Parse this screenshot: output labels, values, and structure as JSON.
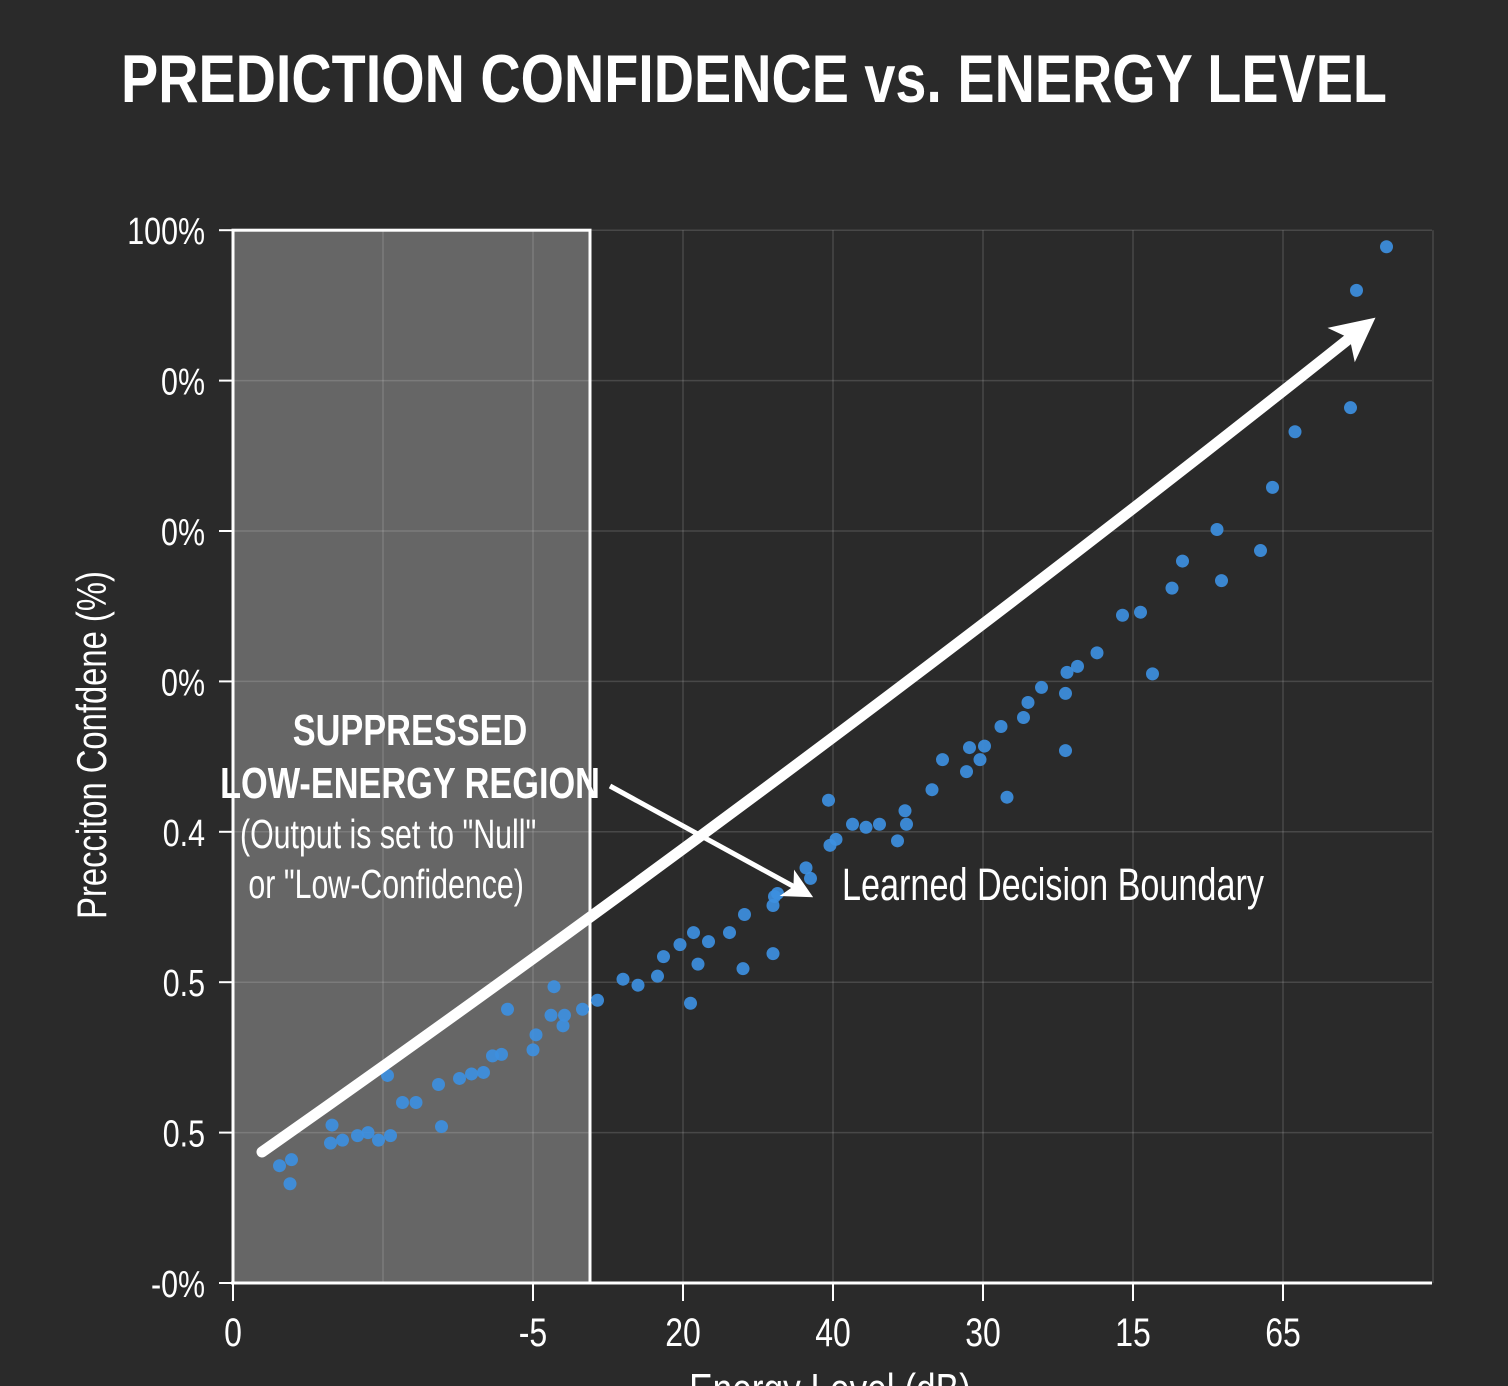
{
  "chart_data": {
    "type": "scatter",
    "title": "PREDICTION CONFIDENCE vs. ENERGY LEVEL",
    "xlabel": "Energy Level (dB)",
    "ylabel": "Precciton Confdene (%)",
    "x_tick_labels": [
      {
        "pos": 0,
        "label": "0"
      },
      {
        "pos": 2,
        "label": "-5"
      },
      {
        "pos": 3,
        "label": "20"
      },
      {
        "pos": 4,
        "label": "40"
      },
      {
        "pos": 5,
        "label": "30"
      },
      {
        "pos": 6,
        "label": "15"
      },
      {
        "pos": 7,
        "label": "65"
      }
    ],
    "x_gridlines": [
      0,
      1,
      2,
      3,
      4,
      5,
      6,
      7,
      8
    ],
    "y_tick_labels": [
      {
        "pos": 0,
        "label": "-0%"
      },
      {
        "pos": 1,
        "label": "0.5"
      },
      {
        "pos": 2,
        "label": "0.5"
      },
      {
        "pos": 3,
        "label": "0.4"
      },
      {
        "pos": 4,
        "label": "0%"
      },
      {
        "pos": 5,
        "label": "0%"
      },
      {
        "pos": 6,
        "label": "0%"
      },
      {
        "pos": 7,
        "label": "100%"
      }
    ],
    "xlim": [
      0,
      8
    ],
    "ylim": [
      0,
      7
    ],
    "grid": true,
    "point_color": "#3d8fe0",
    "shaded_region": {
      "x_range": [
        0,
        2.38
      ],
      "title_lines": [
        "SUPPRESSED",
        "LOW-ENERGY REGION"
      ],
      "note_lines": [
        "(Output is set to \"Null\"",
        " or \"Low-Confidence)"
      ]
    },
    "annotation": {
      "label": "Learned Decision Boundary"
    },
    "points": [
      [
        0.31,
        0.78
      ],
      [
        0.39,
        0.82
      ],
      [
        0.38,
        0.66
      ],
      [
        0.65,
        0.93
      ],
      [
        0.66,
        1.05
      ],
      [
        0.73,
        0.95
      ],
      [
        0.83,
        0.98
      ],
      [
        0.9,
        1.0
      ],
      [
        0.97,
        0.95
      ],
      [
        1.05,
        0.98
      ],
      [
        1.03,
        1.38
      ],
      [
        1.13,
        1.2
      ],
      [
        1.22,
        1.2
      ],
      [
        1.37,
        1.32
      ],
      [
        1.39,
        1.04
      ],
      [
        1.51,
        1.36
      ],
      [
        1.59,
        1.39
      ],
      [
        1.67,
        1.4
      ],
      [
        1.73,
        1.51
      ],
      [
        1.79,
        1.52
      ],
      [
        1.83,
        1.82
      ],
      [
        2.0,
        1.55
      ],
      [
        2.02,
        1.65
      ],
      [
        2.14,
        1.97
      ],
      [
        2.12,
        1.78
      ],
      [
        2.2,
        1.71
      ],
      [
        2.21,
        1.78
      ],
      [
        2.33,
        1.82
      ],
      [
        2.43,
        1.88
      ],
      [
        2.6,
        2.02
      ],
      [
        2.7,
        1.98
      ],
      [
        2.83,
        2.04
      ],
      [
        2.87,
        2.17
      ],
      [
        2.98,
        2.25
      ],
      [
        3.07,
        2.33
      ],
      [
        3.1,
        2.12
      ],
      [
        3.05,
        1.86
      ],
      [
        3.17,
        2.27
      ],
      [
        3.31,
        2.33
      ],
      [
        3.41,
        2.45
      ],
      [
        3.4,
        2.09
      ],
      [
        3.6,
        2.19
      ],
      [
        3.6,
        2.51
      ],
      [
        3.61,
        2.57
      ],
      [
        3.63,
        2.59
      ],
      [
        3.82,
        2.76
      ],
      [
        3.85,
        2.69
      ],
      [
        3.97,
        3.21
      ],
      [
        3.98,
        2.91
      ],
      [
        4.02,
        2.95
      ],
      [
        4.13,
        3.05
      ],
      [
        4.22,
        3.03
      ],
      [
        4.31,
        3.05
      ],
      [
        4.43,
        2.94
      ],
      [
        4.48,
        3.14
      ],
      [
        4.49,
        3.05
      ],
      [
        4.66,
        3.28
      ],
      [
        4.73,
        3.48
      ],
      [
        4.89,
        3.4
      ],
      [
        4.91,
        3.56
      ],
      [
        4.98,
        3.48
      ],
      [
        5.01,
        3.57
      ],
      [
        5.12,
        3.7
      ],
      [
        5.16,
        3.23
      ],
      [
        5.27,
        3.76
      ],
      [
        5.3,
        3.86
      ],
      [
        5.39,
        3.96
      ],
      [
        5.55,
        3.54
      ],
      [
        5.55,
        3.92
      ],
      [
        5.56,
        4.06
      ],
      [
        5.63,
        4.1
      ],
      [
        5.76,
        4.19
      ],
      [
        5.93,
        4.44
      ],
      [
        6.05,
        4.46
      ],
      [
        6.13,
        4.05
      ],
      [
        6.26,
        4.62
      ],
      [
        6.33,
        4.8
      ],
      [
        6.56,
        5.01
      ],
      [
        6.59,
        4.67
      ],
      [
        6.85,
        4.87
      ],
      [
        6.93,
        5.29
      ],
      [
        7.08,
        5.66
      ],
      [
        7.45,
        5.82
      ],
      [
        7.49,
        6.6
      ],
      [
        7.69,
        6.89
      ]
    ]
  }
}
